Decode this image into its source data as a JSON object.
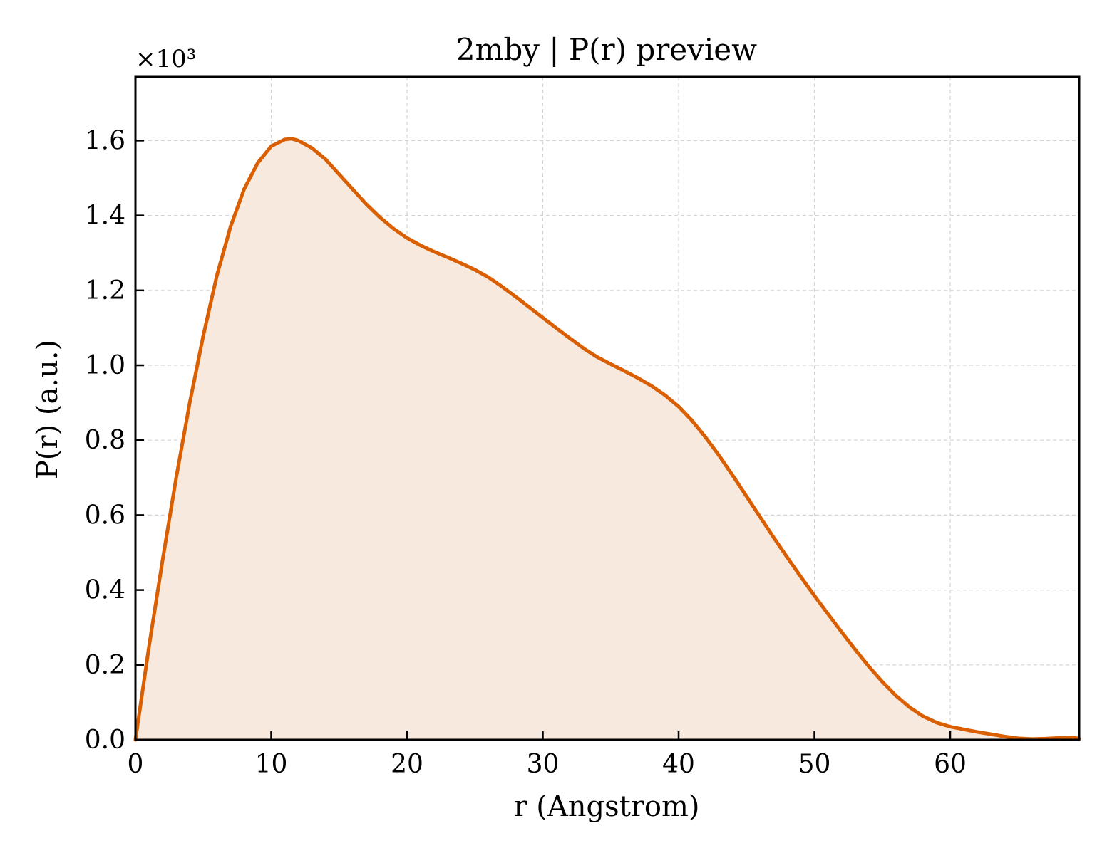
{
  "chart_data": {
    "type": "area",
    "title": "2mby | P(r) preview",
    "xlabel": "r (Angstrom)",
    "ylabel": "P(r) (a.u.)",
    "y_multiplier": "×10³",
    "xlim": [
      0,
      69.5
    ],
    "ylim": [
      0,
      1.77
    ],
    "x_ticks": [
      0,
      10,
      20,
      30,
      40,
      50,
      60
    ],
    "y_ticks": [
      0.0,
      0.2,
      0.4,
      0.6,
      0.8,
      1.0,
      1.2,
      1.4,
      1.6
    ],
    "y_tick_labels": [
      "0.0",
      "0.2",
      "0.4",
      "0.6",
      "0.8",
      "1.0",
      "1.2",
      "1.4",
      "1.6"
    ],
    "grid": true,
    "line_color": "#d95f02",
    "fill_color": "#f8e9de",
    "x": [
      0,
      1,
      2,
      3,
      4,
      5,
      6,
      7,
      8,
      9,
      10,
      11,
      11.5,
      12,
      13,
      14,
      15,
      16,
      17,
      18,
      19,
      20,
      21,
      22,
      23,
      24,
      25,
      26,
      27,
      28,
      29,
      30,
      31,
      32,
      33,
      34,
      35,
      36,
      37,
      38,
      39,
      40,
      41,
      42,
      43,
      44,
      45,
      46,
      47,
      48,
      49,
      50,
      51,
      52,
      53,
      54,
      55,
      56,
      57,
      58,
      59,
      60,
      61,
      62,
      63,
      64,
      65,
      66,
      67,
      68,
      69,
      69.5
    ],
    "y": [
      0.0,
      0.25,
      0.48,
      0.7,
      0.9,
      1.08,
      1.24,
      1.37,
      1.47,
      1.54,
      1.585,
      1.603,
      1.605,
      1.6,
      1.58,
      1.55,
      1.51,
      1.47,
      1.43,
      1.395,
      1.365,
      1.34,
      1.32,
      1.303,
      1.288,
      1.272,
      1.255,
      1.235,
      1.21,
      1.183,
      1.155,
      1.127,
      1.099,
      1.072,
      1.045,
      1.022,
      1.003,
      0.985,
      0.966,
      0.945,
      0.92,
      0.89,
      0.852,
      0.807,
      0.758,
      0.705,
      0.65,
      0.595,
      0.54,
      0.487,
      0.435,
      0.385,
      0.336,
      0.288,
      0.241,
      0.196,
      0.155,
      0.118,
      0.087,
      0.063,
      0.046,
      0.035,
      0.028,
      0.021,
      0.015,
      0.009,
      0.004,
      0.002,
      0.003,
      0.005,
      0.006,
      0.003
    ]
  }
}
